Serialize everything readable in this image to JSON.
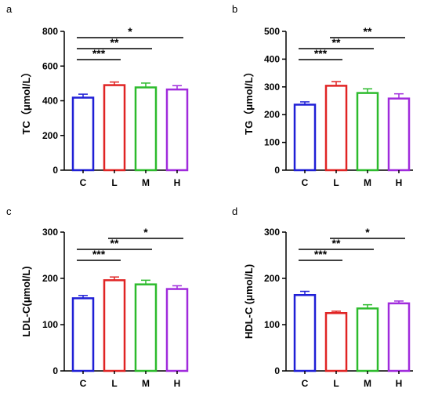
{
  "chart_data": [
    {
      "type": "bar",
      "panel": "a",
      "ylabel": "TC（μmol/L）",
      "categories": [
        "C",
        "L",
        "M",
        "H"
      ],
      "values": [
        418,
        490,
        477,
        465
      ],
      "errors": [
        20,
        18,
        25,
        22
      ],
      "ylim": [
        0,
        800
      ],
      "yticks": [
        0,
        200,
        400,
        600,
        800
      ],
      "significance": [
        {
          "from": 0,
          "to": 1,
          "label": "***"
        },
        {
          "from": 0,
          "to": 2,
          "label": "**"
        },
        {
          "from": 0,
          "to": 3,
          "label": "*"
        }
      ]
    },
    {
      "type": "bar",
      "panel": "b",
      "ylabel": "TG（μmol/L）",
      "categories": [
        "C",
        "L",
        "M",
        "H"
      ],
      "values": [
        236,
        304,
        278,
        258
      ],
      "errors": [
        10,
        15,
        15,
        17
      ],
      "ylim": [
        0,
        500
      ],
      "yticks": [
        0,
        100,
        200,
        300,
        400,
        500
      ],
      "significance": [
        {
          "from": 0,
          "to": 1,
          "label": "***"
        },
        {
          "from": 0,
          "to": 2,
          "label": "**"
        },
        {
          "from": 1,
          "to": 3,
          "label": "**"
        }
      ]
    },
    {
      "type": "bar",
      "panel": "c",
      "ylabel": "LDL-C(μmol/L)",
      "categories": [
        "C",
        "L",
        "M",
        "H"
      ],
      "values": [
        157,
        196,
        187,
        177
      ],
      "errors": [
        6,
        7,
        9,
        7
      ],
      "ylim": [
        0,
        300
      ],
      "yticks": [
        0,
        100,
        200,
        300
      ],
      "significance": [
        {
          "from": 0,
          "to": 1,
          "label": "***"
        },
        {
          "from": 0,
          "to": 2,
          "label": "**"
        },
        {
          "from": 1,
          "to": 3,
          "label": "*"
        }
      ]
    },
    {
      "type": "bar",
      "panel": "d",
      "ylabel": "HDL-C (μmol/L)",
      "categories": [
        "C",
        "L",
        "M",
        "H"
      ],
      "values": [
        164,
        125,
        135,
        146
      ],
      "errors": [
        8,
        4,
        8,
        5
      ],
      "ylim": [
        0,
        300
      ],
      "yticks": [
        0,
        100,
        200,
        300
      ],
      "significance": [
        {
          "from": 0,
          "to": 1,
          "label": "***"
        },
        {
          "from": 0,
          "to": 2,
          "label": "**"
        },
        {
          "from": 1,
          "to": 3,
          "label": "*"
        }
      ]
    }
  ],
  "bar_colors": [
    "#1f1fd6",
    "#e02424",
    "#2dbb2d",
    "#a02bdc"
  ],
  "axis_color": "#000000",
  "bar_fill": "#ffffff"
}
